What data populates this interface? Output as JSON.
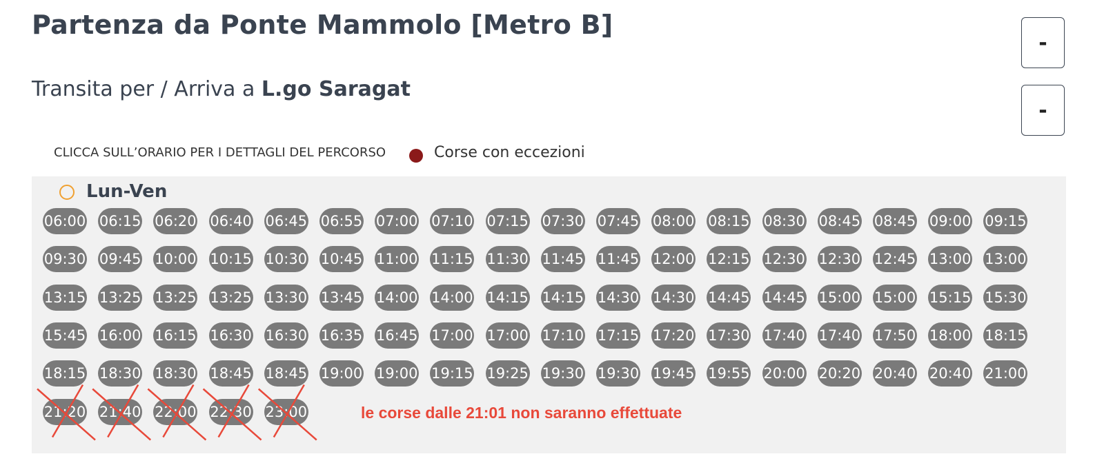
{
  "header": {
    "title": "Partenza da Ponte Mammolo [Metro B]",
    "subtitle_prefix": "Transita per / Arriva a",
    "subtitle_place": "L.go Saragat",
    "buttons": [
      "-",
      "-"
    ]
  },
  "legend": {
    "instruction": "CLICCA SULL’ORARIO PER I DETTAGLI DEL PERCORSO",
    "exceptions": "Corse con eccezioni"
  },
  "schedule": {
    "day": "Lun-Ven",
    "times": [
      "06:00",
      "06:15",
      "06:20",
      "06:40",
      "06:45",
      "06:55",
      "07:00",
      "07:10",
      "07:15",
      "07:30",
      "07:45",
      "08:00",
      "08:15",
      "08:30",
      "08:45",
      "08:45",
      "09:00",
      "09:15",
      "09:30",
      "09:45",
      "10:00",
      "10:15",
      "10:30",
      "10:45",
      "11:00",
      "11:15",
      "11:30",
      "11:45",
      "11:45",
      "12:00",
      "12:15",
      "12:30",
      "12:30",
      "12:45",
      "13:00",
      "13:00",
      "13:15",
      "13:25",
      "13:25",
      "13:25",
      "13:30",
      "13:45",
      "14:00",
      "14:00",
      "14:15",
      "14:15",
      "14:30",
      "14:30",
      "14:45",
      "14:45",
      "15:00",
      "15:00",
      "15:15",
      "15:30",
      "15:45",
      "16:00",
      "16:15",
      "16:30",
      "16:30",
      "16:35",
      "16:45",
      "17:00",
      "17:00",
      "17:10",
      "17:15",
      "17:20",
      "17:30",
      "17:40",
      "17:40",
      "17:50",
      "18:00",
      "18:15",
      "18:15",
      "18:30",
      "18:30",
      "18:45",
      "18:45",
      "19:00",
      "19:00",
      "19:15",
      "19:25",
      "19:30",
      "19:30",
      "19:45",
      "19:55",
      "20:00",
      "20:20",
      "20:40",
      "20:40",
      "21:00"
    ],
    "cancelled": [
      "21:20",
      "21:40",
      "22:00",
      "22:30",
      "23:00"
    ],
    "note": "le corse dalle 21:01 non saranno effettuate"
  }
}
